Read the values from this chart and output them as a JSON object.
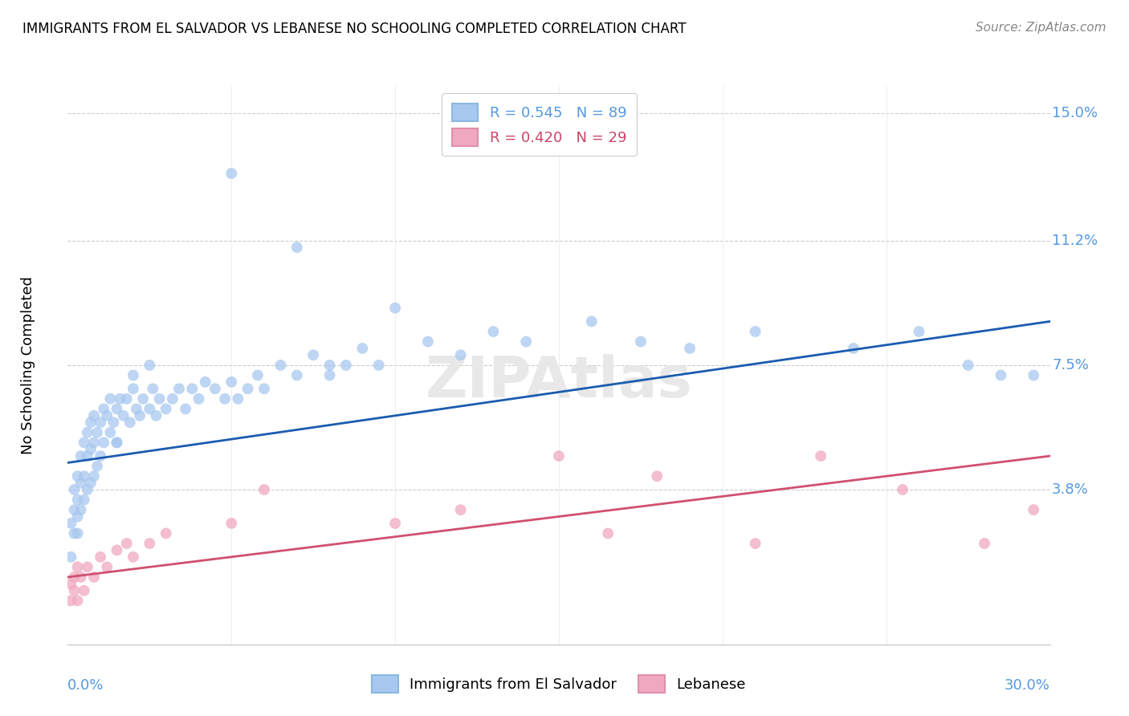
{
  "title": "IMMIGRANTS FROM EL SALVADOR VS LEBANESE NO SCHOOLING COMPLETED CORRELATION CHART",
  "source": "Source: ZipAtlas.com",
  "ylabel": "No Schooling Completed",
  "legend_entries_top": [
    "R = 0.545   N = 89",
    "R = 0.420   N = 29"
  ],
  "legend_series": [
    "Immigrants from El Salvador",
    "Lebanese"
  ],
  "blue_color": "#a8c8f0",
  "pink_color": "#f0a8c0",
  "blue_line_color": "#1a5cb0",
  "pink_line_color": "#d05070",
  "background_color": "#ffffff",
  "xmin": 0.0,
  "xmax": 0.3,
  "ymin": -0.008,
  "ymax": 0.158,
  "ytick_vals": [
    0.038,
    0.075,
    0.112,
    0.15
  ],
  "ytick_labels": [
    "3.8%",
    "7.5%",
    "11.2%",
    "15.0%"
  ],
  "blue_line_x0": 0.0,
  "blue_line_x1": 0.3,
  "blue_line_y0": 0.046,
  "blue_line_y1": 0.088,
  "pink_line_x0": 0.0,
  "pink_line_x1": 0.3,
  "pink_line_y0": 0.012,
  "pink_line_y1": 0.048,
  "blue_scatter_x": [
    0.001,
    0.001,
    0.002,
    0.002,
    0.002,
    0.003,
    0.003,
    0.003,
    0.003,
    0.004,
    0.004,
    0.004,
    0.005,
    0.005,
    0.005,
    0.006,
    0.006,
    0.006,
    0.007,
    0.007,
    0.007,
    0.008,
    0.008,
    0.008,
    0.009,
    0.009,
    0.01,
    0.01,
    0.011,
    0.011,
    0.012,
    0.013,
    0.013,
    0.014,
    0.015,
    0.015,
    0.016,
    0.017,
    0.018,
    0.019,
    0.02,
    0.021,
    0.022,
    0.023,
    0.025,
    0.026,
    0.027,
    0.028,
    0.03,
    0.032,
    0.034,
    0.036,
    0.038,
    0.04,
    0.042,
    0.045,
    0.048,
    0.05,
    0.052,
    0.055,
    0.058,
    0.06,
    0.065,
    0.07,
    0.075,
    0.08,
    0.085,
    0.09,
    0.095,
    0.1,
    0.11,
    0.12,
    0.13,
    0.14,
    0.16,
    0.175,
    0.19,
    0.21,
    0.24,
    0.26,
    0.275,
    0.285,
    0.295,
    0.015,
    0.02,
    0.025,
    0.05,
    0.07,
    0.08
  ],
  "blue_scatter_y": [
    0.028,
    0.018,
    0.032,
    0.025,
    0.038,
    0.035,
    0.025,
    0.042,
    0.03,
    0.04,
    0.032,
    0.048,
    0.042,
    0.035,
    0.052,
    0.048,
    0.038,
    0.055,
    0.05,
    0.04,
    0.058,
    0.052,
    0.042,
    0.06,
    0.055,
    0.045,
    0.058,
    0.048,
    0.062,
    0.052,
    0.06,
    0.065,
    0.055,
    0.058,
    0.062,
    0.052,
    0.065,
    0.06,
    0.065,
    0.058,
    0.068,
    0.062,
    0.06,
    0.065,
    0.062,
    0.068,
    0.06,
    0.065,
    0.062,
    0.065,
    0.068,
    0.062,
    0.068,
    0.065,
    0.07,
    0.068,
    0.065,
    0.07,
    0.065,
    0.068,
    0.072,
    0.068,
    0.075,
    0.072,
    0.078,
    0.072,
    0.075,
    0.08,
    0.075,
    0.092,
    0.082,
    0.078,
    0.085,
    0.082,
    0.088,
    0.082,
    0.08,
    0.085,
    0.08,
    0.085,
    0.075,
    0.072,
    0.072,
    0.052,
    0.072,
    0.075,
    0.132,
    0.11,
    0.075
  ],
  "pink_scatter_x": [
    0.001,
    0.001,
    0.002,
    0.002,
    0.003,
    0.003,
    0.004,
    0.005,
    0.006,
    0.008,
    0.01,
    0.012,
    0.015,
    0.018,
    0.02,
    0.025,
    0.03,
    0.05,
    0.06,
    0.1,
    0.12,
    0.15,
    0.165,
    0.18,
    0.21,
    0.23,
    0.255,
    0.28,
    0.295
  ],
  "pink_scatter_y": [
    0.01,
    0.005,
    0.012,
    0.008,
    0.015,
    0.005,
    0.012,
    0.008,
    0.015,
    0.012,
    0.018,
    0.015,
    0.02,
    0.022,
    0.018,
    0.022,
    0.025,
    0.028,
    0.038,
    0.028,
    0.032,
    0.048,
    0.025,
    0.042,
    0.022,
    0.048,
    0.038,
    0.022,
    0.032
  ]
}
